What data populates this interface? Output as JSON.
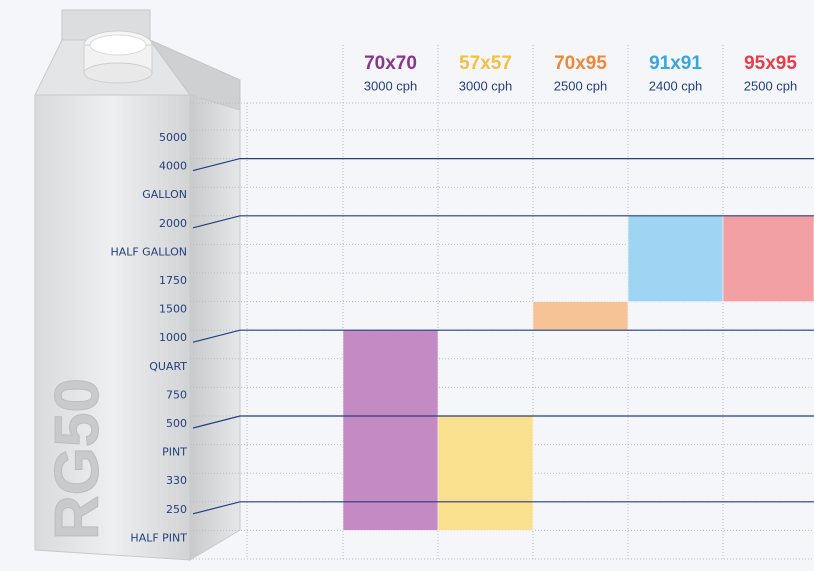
{
  "chart_data": {
    "type": "range-bar",
    "brand": "RG50",
    "rows": [
      "5000",
      "4000",
      "GALLON",
      "2000",
      "HALF GALLON",
      "1750",
      "1500",
      "1000",
      "QUART",
      "750",
      "500",
      "PINT",
      "330",
      "250",
      "HALF PINT"
    ],
    "highlight_rows": [
      "4000",
      "2000",
      "1000",
      "500",
      "250"
    ],
    "series": [
      {
        "name": "70x70",
        "rate": "3000 cph",
        "color": "#c48ac4",
        "label_color": "#8a3590",
        "span": {
          "top": "1000",
          "bottom": "250"
        }
      },
      {
        "name": "57x57",
        "rate": "3000 cph",
        "color": "#f8e08e",
        "label_color": "#f5c03e",
        "span": {
          "top": "500",
          "bottom": "250"
        }
      },
      {
        "name": "70x95",
        "rate": "2500 cph",
        "color": "#f5c396",
        "label_color": "#f0883a",
        "span": {
          "top": "1500",
          "bottom": "1500"
        }
      },
      {
        "name": "91x91",
        "rate": "2400 cph",
        "color": "#9fd5f2",
        "label_color": "#3aa7dc",
        "span": {
          "top": "2000",
          "bottom": "1750"
        }
      },
      {
        "name": "95x95",
        "rate": "2500 cph",
        "color": "#f2a0a3",
        "label_color": "#e63d48",
        "span": {
          "top": "2000",
          "bottom": "1750"
        }
      }
    ]
  }
}
